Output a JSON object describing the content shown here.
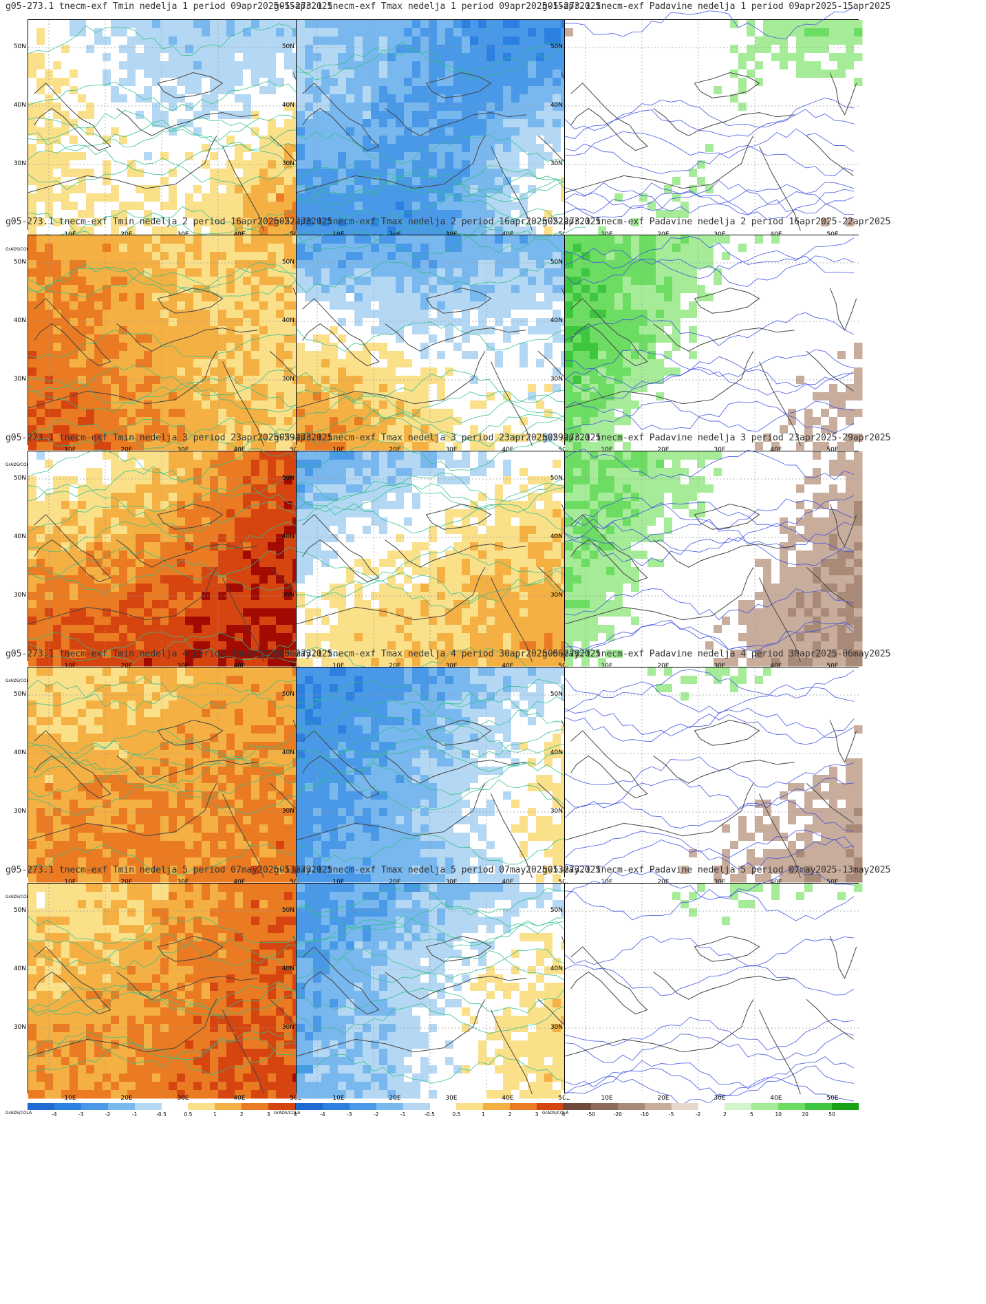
{
  "panels": [
    {
      "title": "g05-273.1 tnecm-exf Tmin nedelja 1 period 09apr2025-15apr2025",
      "var": "temp",
      "pattern": "tmin1"
    },
    {
      "title": "g05-273.1 tnecm-exf Tmax nedelja 1 period 09apr2025-15apr2025",
      "var": "temp",
      "pattern": "tmax1"
    },
    {
      "title": "g05-273.1 tnecm-exf Padavine nedelja 1 period 09apr2025-15apr2025",
      "var": "precip",
      "pattern": "p1"
    },
    {
      "title": "g05-273.1 tnecm-exf Tmin nedelja 2 period 16apr2025-22apr2025",
      "var": "temp",
      "pattern": "tmin2"
    },
    {
      "title": "g05-273.1 tnecm-exf Tmax nedelja 2 period 16apr2025-22apr2025",
      "var": "temp",
      "pattern": "tmax2"
    },
    {
      "title": "g05-273.1 tnecm-exf Padavine nedelja 2 period 16apr2025-22apr2025",
      "var": "precip",
      "pattern": "p2"
    },
    {
      "title": "g05-273.1 tnecm-exf Tmin nedelja 3 period 23apr2025-29apr2025",
      "var": "temp",
      "pattern": "tmin3"
    },
    {
      "title": "g05-273.1 tnecm-exf Tmax nedelja 3 period 23apr2025-29apr2025",
      "var": "temp",
      "pattern": "tmax3"
    },
    {
      "title": "g05-273.1 tnecm-exf Padavine nedelja 3 period 23apr2025-29apr2025",
      "var": "precip",
      "pattern": "p3"
    },
    {
      "title": "g05-273.1 tnecm-exf Tmin nedelja 4 period 30apr2025-06may2025",
      "var": "temp",
      "pattern": "tmin4"
    },
    {
      "title": "g05-273.1 tnecm-exf Tmax nedelja 4 period 30apr2025-06may2025",
      "var": "temp",
      "pattern": "tmax4"
    },
    {
      "title": "g05-273.1 tnecm-exf Padavine nedelja 4 period 30apr2025-06may2025",
      "var": "precip",
      "pattern": "p4"
    },
    {
      "title": "g05-273.1 tnecm-exf Tmin nedelja 5 period 07may2025-13may2025",
      "var": "temp",
      "pattern": "tmin5"
    },
    {
      "title": "g05-273.1 tnecm-exf Tmax nedelja 5 period 07may2025-13may2025",
      "var": "temp",
      "pattern": "tmax5"
    },
    {
      "title": "g05-273.1 tnecm-exf Padavine nedelja 5 period 07may2025-13may2025",
      "var": "precip",
      "pattern": "p5"
    }
  ],
  "lat_labels": [
    "50N",
    "40N",
    "30N"
  ],
  "lon_labels": [
    "10E",
    "20E",
    "30E",
    "40E",
    "50E"
  ],
  "temp_scale": {
    "labels": [
      "-4",
      "-3",
      "-2",
      "-1",
      "-0.5",
      "0.5",
      "1",
      "2",
      "3",
      "4"
    ],
    "colors": [
      "#1e6ad2",
      "#2c80e0",
      "#4a99e8",
      "#79b7ef",
      "#b4d8f4",
      "#ffffff",
      "#fbe08a",
      "#f5b043",
      "#ea7b22",
      "#d64510",
      "#a20b02"
    ]
  },
  "precip_scale": {
    "labels": [
      "-50",
      "-20",
      "-10",
      "-5",
      "-2",
      "2",
      "5",
      "10",
      "20",
      "50"
    ],
    "colors": [
      "#6e4a3a",
      "#8e6a58",
      "#a98a78",
      "#c8ac9c",
      "#e6d8cc",
      "#ffffff",
      "#d4f5cc",
      "#a6ec98",
      "#6ddc62",
      "#3ec63e",
      "#16a016"
    ]
  },
  "credit": "GrADS/COLA"
}
